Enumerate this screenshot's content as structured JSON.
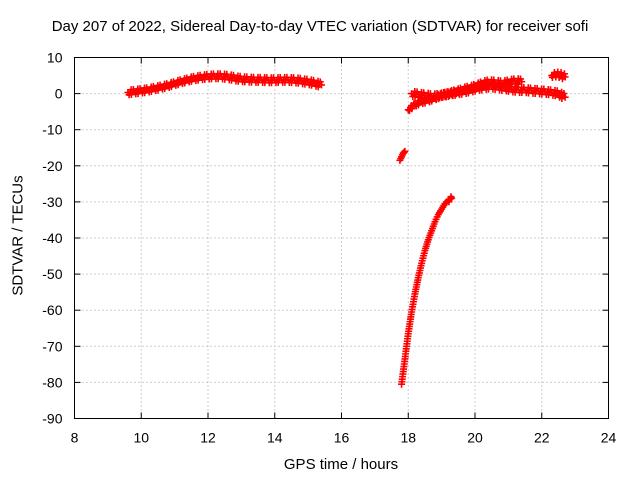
{
  "chart_data": {
    "type": "scatter",
    "title": "Day 207 of 2022, Sidereal Day-to-day VTEC variation (SDTVAR) for receiver sofi",
    "xlabel": "GPS time / hours",
    "ylabel": "SDTVAR / TECUs",
    "xlim": [
      8,
      24
    ],
    "ylim": [
      -90,
      10
    ],
    "xticks": [
      8,
      10,
      12,
      14,
      16,
      18,
      20,
      22,
      24
    ],
    "yticks": [
      10,
      0,
      -10,
      -20,
      -30,
      -40,
      -50,
      -60,
      -70,
      -80,
      -90
    ],
    "grid": true,
    "legend": "none",
    "marker": "plus",
    "color": "#ff0000",
    "series": [
      {
        "x": [
          9.6,
          9.8,
          10.0,
          10.2,
          10.4,
          10.6,
          10.8,
          11.0,
          11.2,
          11.4,
          11.6,
          11.8,
          12.0,
          12.2,
          12.4,
          12.6,
          12.8,
          13.0,
          13.2,
          13.4,
          13.6,
          13.8,
          14.0,
          14.2,
          14.4,
          14.6,
          14.8,
          15.0,
          15.2,
          15.4
        ],
        "y": [
          0.3,
          0.5,
          0.8,
          1.0,
          1.4,
          1.8,
          2.2,
          2.8,
          3.3,
          3.8,
          4.2,
          4.5,
          4.7,
          4.8,
          4.8,
          4.6,
          4.3,
          4.0,
          3.9,
          3.8,
          3.8,
          3.7,
          3.7,
          3.8,
          3.8,
          3.7,
          3.5,
          3.2,
          2.9,
          2.4
        ]
      },
      {
        "x": [
          17.75,
          17.8,
          17.85,
          17.9
        ],
        "y": [
          -18.5,
          -17.5,
          -16.5,
          -16.0
        ]
      },
      {
        "x": [
          17.8,
          17.85,
          17.9,
          17.95,
          18.0,
          18.1,
          18.2,
          18.3,
          18.4,
          18.5,
          18.6,
          18.7,
          18.8,
          18.9,
          19.0,
          19.1,
          19.2,
          19.3
        ],
        "y": [
          -80.5,
          -77.0,
          -73.5,
          -70.0,
          -66.5,
          -60.5,
          -55.5,
          -51.0,
          -47.0,
          -43.5,
          -40.5,
          -38.0,
          -35.5,
          -33.5,
          -32.0,
          -30.5,
          -29.5,
          -29.0
        ]
      },
      {
        "x": [
          18.1,
          18.3,
          18.5,
          18.7,
          18.9,
          19.1,
          19.3,
          19.5,
          19.7,
          19.9,
          20.1,
          20.3,
          20.5,
          20.7,
          20.9,
          21.1,
          21.3,
          21.5,
          21.7,
          21.9,
          22.1,
          22.3,
          22.5,
          22.7
        ],
        "y": [
          0.0,
          -0.3,
          -0.5,
          -0.8,
          -0.6,
          -0.3,
          0.0,
          0.3,
          0.6,
          1.0,
          1.5,
          1.8,
          2.0,
          1.8,
          1.5,
          1.2,
          1.0,
          1.0,
          0.8,
          0.7,
          0.5,
          0.3,
          0.0,
          -1.0
        ]
      },
      {
        "x": [
          18.0,
          18.2,
          18.4,
          18.6,
          18.8,
          19.0,
          19.2,
          19.4,
          19.6,
          19.8,
          20.0,
          20.2,
          20.4,
          20.6,
          20.8,
          21.0,
          21.2,
          21.4
        ],
        "y": [
          -4.5,
          -3.0,
          -2.2,
          -1.8,
          -1.2,
          -0.5,
          0.0,
          0.5,
          1.0,
          1.5,
          2.0,
          2.8,
          3.2,
          3.0,
          2.8,
          3.2,
          3.5,
          3.3
        ]
      },
      {
        "x": [
          22.3,
          22.4,
          22.5,
          22.6,
          22.7
        ],
        "y": [
          5.0,
          5.3,
          5.3,
          5.0,
          4.6
        ]
      }
    ]
  }
}
